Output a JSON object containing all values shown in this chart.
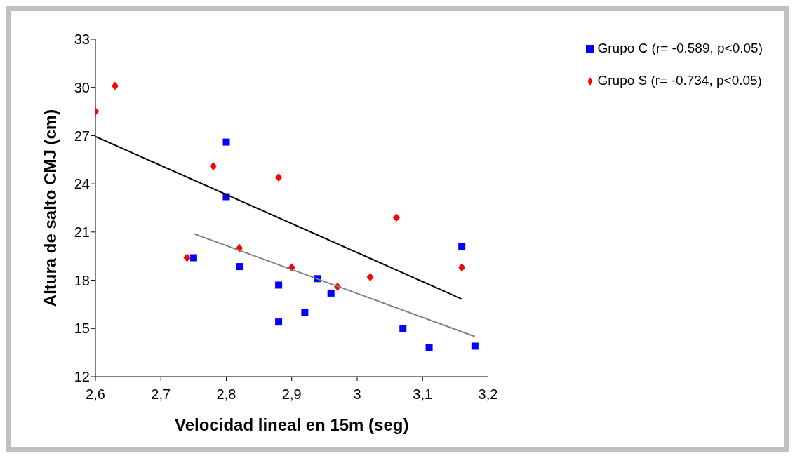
{
  "chart_data": {
    "type": "scatter",
    "xlabel": "Velocidad lineal en 15m (seg)",
    "ylabel": "Altura de salto CMJ (cm)",
    "xlim": [
      2.6,
      3.2
    ],
    "xticks": [
      {
        "value": 2.6,
        "label": "2,6"
      },
      {
        "value": 2.7,
        "label": "2,7"
      },
      {
        "value": 2.8,
        "label": "2,8"
      },
      {
        "value": 2.9,
        "label": "2,9"
      },
      3,
      {
        "value": 3.1,
        "label": "3,1"
      },
      {
        "value": 3.2,
        "label": "3,2"
      }
    ],
    "ylim": [
      12,
      33
    ],
    "yticks": [
      12,
      15,
      18,
      21,
      24,
      27,
      30,
      33
    ],
    "grid": false,
    "legend": "top right",
    "series": [
      {
        "name": "Grupo S (r= -0.734, p<0.05)",
        "color": "#ff0000",
        "marker": "diamond",
        "x": [
          2.6,
          2.63,
          2.74,
          2.78,
          2.82,
          2.88,
          2.9,
          2.97,
          3.02,
          3.06,
          3.16
        ],
        "values": [
          28.5,
          30.1,
          19.4,
          25.1,
          20.0,
          24.4,
          18.8,
          17.6,
          18.2,
          21.9,
          18.8
        ]
      },
      {
        "name": "Grupo C (r= -0.589, p<0.05)",
        "color": "#0000ff",
        "marker": "square",
        "x": [
          2.75,
          2.8,
          2.8,
          2.82,
          2.88,
          2.88,
          2.92,
          2.94,
          2.96,
          3.07,
          3.11,
          3.16,
          3.18
        ],
        "values": [
          19.4,
          26.6,
          23.2,
          18.85,
          17.7,
          15.4,
          16.0,
          18.1,
          17.2,
          15.0,
          13.8,
          20.1,
          13.9
        ]
      },
      {
        "type": "line",
        "color": "#000000",
        "marker": "none",
        "x": [
          2.6,
          3.16
        ],
        "values": [
          26.95,
          16.83
        ]
      },
      {
        "type": "line",
        "color": "#808080",
        "marker": "none",
        "x": [
          2.75,
          3.18
        ],
        "values": [
          20.9,
          14.5
        ]
      }
    ]
  }
}
